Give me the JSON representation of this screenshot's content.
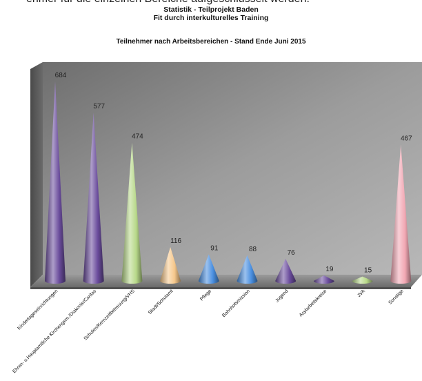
{
  "header": {
    "top_line": "ehmer für die einzelnen Bereiche aufgeschlüsselt werden."
  },
  "chart_data": {
    "type": "bar",
    "title_lines": [
      "Statistik - Teilprojekt Baden",
      "Fit durch interkulturelles Training"
    ],
    "subtitle": "Teilnehmer nach Arbeitsbereichen - Stand Ende Juni 2015",
    "categories": [
      "Kindertageseinrichtungen",
      "Ehren- u.Hauptamtliche Kirchengem./Diakonie/Caritas",
      "Schulen/Kernzeitbetreuung/VHS",
      "Stadt/Schulamt",
      "Pflege",
      "Bahnhofsmission",
      "Jugend",
      "Asylarbeitskreise",
      "JVA",
      "Sonstige"
    ],
    "values": [
      684,
      577,
      474,
      116,
      91,
      88,
      76,
      19,
      15,
      467
    ],
    "ylim": [
      0,
      750
    ],
    "colors": [
      "#6a4c9c",
      "#6a4c9c",
      "#b8d98a",
      "#f6c88c",
      "#4a8fe0",
      "#4a8fe0",
      "#6a4c9c",
      "#6a4c9c",
      "#b8d98a",
      "#f2a8b4"
    ],
    "grid": false,
    "legend": "none"
  }
}
